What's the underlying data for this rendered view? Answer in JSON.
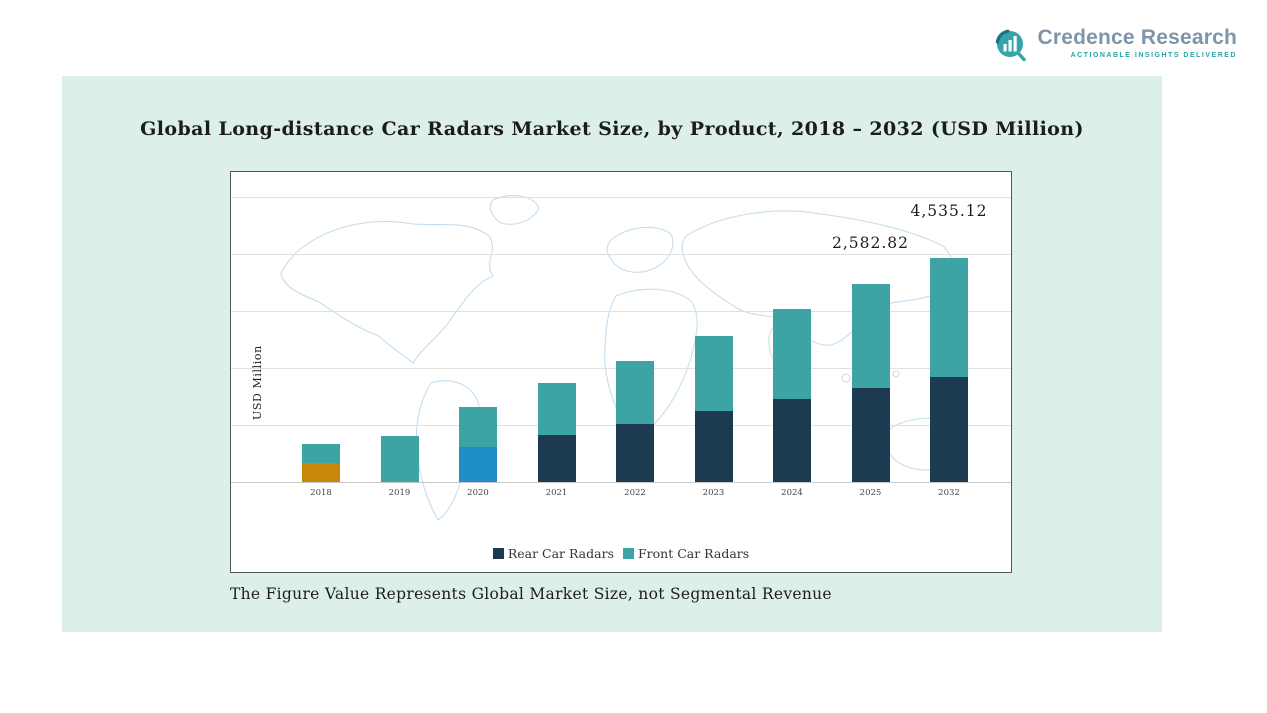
{
  "logo": {
    "name": "Credence Research",
    "tagline": "Actionable Insights Delivered",
    "text_color": "#7e95a9",
    "icon_color": "#2ba3a8"
  },
  "colors": {
    "panel_background": "#ddefeb",
    "chart_background": "#ffffff",
    "map_outline": "#c3def0",
    "gridline": "#e0e0e0"
  },
  "chart_data": {
    "type": "bar",
    "stacked": true,
    "title": "Global Long-distance Car Radars Market Size, by Product, 2018 – 2032 (USD Million)",
    "ylabel": "USD Million",
    "note": "The Figure Value Represents Global Market Size, not Segmental Revenue",
    "legend_position": "bottom",
    "grid": true,
    "categories": [
      "2018",
      "2019",
      "2020",
      "2021",
      "2022",
      "2023",
      "2024",
      "2025",
      "2032"
    ],
    "series": [
      {
        "name": "Rear Car Radars",
        "color": "#1c3b50"
      },
      {
        "name": "Front Car Radars",
        "color": "#3da3a4"
      }
    ],
    "labeled_totals": [
      {
        "category": "2025",
        "value": 2582.82,
        "label": "2,582.82"
      },
      {
        "category": "2032",
        "value": 4535.12,
        "label": "4,535.12"
      }
    ],
    "bars": [
      {
        "category": "2018",
        "segments": [
          {
            "series": "Rear Car Radars",
            "color": "#c8860b",
            "h": 19
          },
          {
            "series": "Front Car Radars",
            "color": "#3da3a4",
            "h": 19
          }
        ]
      },
      {
        "category": "2019",
        "segments": [
          {
            "series": "Front Car Radars",
            "color": "#3da3a4",
            "h": 46
          }
        ]
      },
      {
        "category": "2020",
        "segments": [
          {
            "series": "Rear Car Radars",
            "color": "#1e8dc8",
            "h": 35
          },
          {
            "series": "Front Car Radars",
            "color": "#3da3a4",
            "h": 40
          }
        ]
      },
      {
        "category": "2021",
        "segments": [
          {
            "series": "Rear Car Radars",
            "color": "#1c3b50",
            "h": 47
          },
          {
            "series": "Front Car Radars",
            "color": "#3da3a4",
            "h": 52
          }
        ]
      },
      {
        "category": "2022",
        "segments": [
          {
            "series": "Rear Car Radars",
            "color": "#1c3b50",
            "h": 58
          },
          {
            "series": "Front Car Radars",
            "color": "#3da3a4",
            "h": 63
          }
        ]
      },
      {
        "category": "2023",
        "segments": [
          {
            "series": "Rear Car Radars",
            "color": "#1c3b50",
            "h": 71
          },
          {
            "series": "Front Car Radars",
            "color": "#3da3a4",
            "h": 75
          }
        ]
      },
      {
        "category": "2024",
        "segments": [
          {
            "series": "Rear Car Radars",
            "color": "#1c3b50",
            "h": 83
          },
          {
            "series": "Front Car Radars",
            "color": "#3da3a4",
            "h": 90
          }
        ]
      },
      {
        "category": "2025",
        "label": "2,582.82",
        "label_gap": 32,
        "segments": [
          {
            "series": "Rear Car Radars",
            "color": "#1c3b50",
            "h": 94
          },
          {
            "series": "Front Car Radars",
            "color": "#3da3a4",
            "h": 104
          }
        ]
      },
      {
        "category": "2032",
        "label": "4,535.12",
        "label_gap": 38,
        "segments": [
          {
            "series": "Rear Car Radars",
            "color": "#1c3b50",
            "h": 105
          },
          {
            "series": "Front Car Radars",
            "color": "#3da3a4",
            "h": 119
          }
        ]
      }
    ]
  }
}
